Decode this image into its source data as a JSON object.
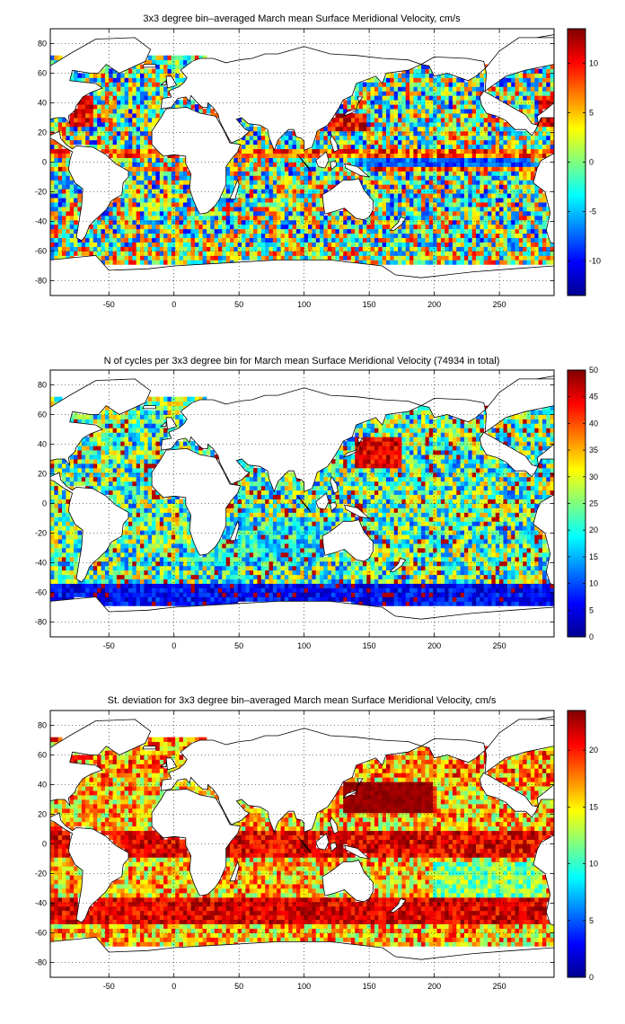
{
  "chart_data": [
    {
      "type": "heatmap",
      "title": "3x3 degree bin–averaged March mean Surface Meridional Velocity, cm/s",
      "xlim": [
        -95,
        292
      ],
      "ylim": [
        -90,
        90
      ],
      "xticks": [
        -50,
        0,
        50,
        100,
        150,
        200,
        250
      ],
      "yticks": [
        80,
        60,
        40,
        20,
        0,
        -20,
        -40,
        -60,
        -80
      ],
      "grid": true,
      "bin_size_degrees": 3,
      "colormap": "jet",
      "colorbar": {
        "min": -13.5,
        "max": 13.5,
        "ticks": [
          10,
          5,
          0,
          -5,
          -10
        ]
      }
    },
    {
      "type": "heatmap",
      "title": "N of cycles per 3x3 degree bin for March mean Surface Meridional Velocity (74934 in total)",
      "xlim": [
        -95,
        292
      ],
      "ylim": [
        -90,
        90
      ],
      "xticks": [
        -50,
        0,
        50,
        100,
        150,
        200,
        250
      ],
      "yticks": [
        80,
        60,
        40,
        20,
        0,
        -20,
        -40,
        -60,
        -80
      ],
      "grid": true,
      "bin_size_degrees": 3,
      "colormap": "jet",
      "colorbar": {
        "min": 0,
        "max": 50,
        "ticks": [
          50,
          45,
          40,
          35,
          30,
          25,
          20,
          15,
          10,
          5,
          0
        ]
      }
    },
    {
      "type": "heatmap",
      "title": "St. deviation for 3x3 degree bin–averaged March mean Surface Meridional Velocity, cm/s",
      "xlim": [
        -95,
        292
      ],
      "ylim": [
        -90,
        90
      ],
      "xticks": [
        -50,
        0,
        50,
        100,
        150,
        200,
        250
      ],
      "yticks": [
        80,
        60,
        40,
        20,
        0,
        -20,
        -40,
        -60,
        -80
      ],
      "grid": true,
      "bin_size_degrees": 3,
      "colormap": "jet",
      "colorbar": {
        "min": 0,
        "max": 23.5,
        "ticks": [
          20,
          15,
          10,
          5,
          0
        ]
      }
    }
  ]
}
